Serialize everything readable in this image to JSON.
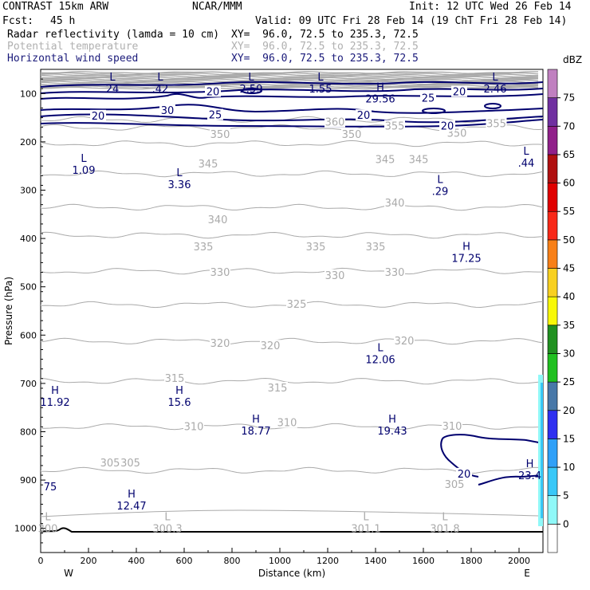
{
  "header": {
    "model": "CONTRAST 15km ARW",
    "org": "NCAR/MMM",
    "init": "Init: 12 UTC Wed 26 Feb 14",
    "fcst_label": "Fcst:",
    "fcst_value": "45 h",
    "valid": "Valid: 09 UTC Fri 28 Feb 14 (19 ChT Fri 28 Feb 14)"
  },
  "fields": [
    {
      "name": "Radar reflectivity (lamda = 10 cm)",
      "xy": "XY=  96.0, 72.5 to 235.3, 72.5",
      "color": "#000000"
    },
    {
      "name": "Potential temperature",
      "xy": "XY=  96.0, 72.5 to 235.3, 72.5",
      "color": "#b0b0b0"
    },
    {
      "name": "Horizontal wind speed",
      "xy": "XY=  96.0, 72.5 to 235.3, 72.5",
      "color": "#1a1a7a"
    }
  ],
  "colors": {
    "theta": "#aaaaaa",
    "wind": "#00006e",
    "terrain": "#000000"
  },
  "chart_data": {
    "type": "cross-section",
    "xlabel": "Distance (km)",
    "ylabel": "Pressure (hPa)",
    "xlim": [
      0,
      2100
    ],
    "ylim": [
      1050,
      50
    ],
    "xticks": [
      0,
      200,
      400,
      600,
      800,
      1000,
      1200,
      1400,
      1600,
      1800,
      2000
    ],
    "yticks": [
      100,
      200,
      300,
      400,
      500,
      600,
      700,
      800,
      900,
      1000
    ],
    "west_label": "W",
    "east_label": "E",
    "colorbar": {
      "title": "dBZ",
      "levels": [
        "0",
        "5",
        "10",
        "15",
        "20",
        "25",
        "30",
        "35",
        "40",
        "45",
        "50",
        "55",
        "60",
        "65",
        "70",
        "75"
      ],
      "colors": [
        "#ffffff",
        "#8ff8f8",
        "#38c8f8",
        "#2fa0f8",
        "#2f30f0",
        "#4878a8",
        "#20c020",
        "#209020",
        "#f8f808",
        "#f8d020",
        "#f88018",
        "#f82818",
        "#e00000",
        "#b01010",
        "#90208a",
        "#7030a0",
        "#c080c0"
      ]
    },
    "theta_labels": [
      {
        "text": "350",
        "x": 750,
        "p": 185
      },
      {
        "text": "350",
        "x": 1300,
        "p": 185
      },
      {
        "text": "350",
        "x": 1740,
        "p": 183
      },
      {
        "text": "355",
        "x": 1480,
        "p": 168
      },
      {
        "text": "355",
        "x": 1905,
        "p": 163
      },
      {
        "text": "360",
        "x": 1230,
        "p": 160
      },
      {
        "text": "345",
        "x": 700,
        "p": 246
      },
      {
        "text": "345",
        "x": 1440,
        "p": 237
      },
      {
        "text": "345",
        "x": 1580,
        "p": 237
      },
      {
        "text": "340",
        "x": 740,
        "p": 362
      },
      {
        "text": "340",
        "x": 1480,
        "p": 327
      },
      {
        "text": "335",
        "x": 680,
        "p": 418
      },
      {
        "text": "335",
        "x": 1150,
        "p": 418
      },
      {
        "text": "335",
        "x": 1400,
        "p": 418
      },
      {
        "text": "330",
        "x": 750,
        "p": 471
      },
      {
        "text": "330",
        "x": 1230,
        "p": 477
      },
      {
        "text": "330",
        "x": 1480,
        "p": 471
      },
      {
        "text": "325",
        "x": 1070,
        "p": 537
      },
      {
        "text": "320",
        "x": 750,
        "p": 618
      },
      {
        "text": "320",
        "x": 960,
        "p": 623
      },
      {
        "text": "320",
        "x": 1520,
        "p": 613
      },
      {
        "text": "315",
        "x": 560,
        "p": 690
      },
      {
        "text": "315",
        "x": 990,
        "p": 710
      },
      {
        "text": "310",
        "x": 640,
        "p": 790
      },
      {
        "text": "310",
        "x": 1030,
        "p": 782
      },
      {
        "text": "310",
        "x": 1720,
        "p": 789
      },
      {
        "text": "305",
        "x": 290,
        "p": 865
      },
      {
        "text": "305",
        "x": 375,
        "p": 865
      },
      {
        "text": "305",
        "x": 1730,
        "p": 910
      }
    ],
    "wind_labels": [
      {
        "text": "20",
        "x": 720,
        "p": 97
      },
      {
        "text": "20",
        "x": 1750,
        "p": 97
      },
      {
        "text": "25",
        "x": 1620,
        "p": 110
      },
      {
        "text": "30",
        "x": 530,
        "p": 136
      },
      {
        "text": "20",
        "x": 240,
        "p": 147
      },
      {
        "text": "25",
        "x": 730,
        "p": 145
      },
      {
        "text": "20",
        "x": 1350,
        "p": 146
      },
      {
        "text": "20",
        "x": 1700,
        "p": 168
      },
      {
        "text": "20",
        "x": 1770,
        "p": 888
      }
    ],
    "extrema": [
      {
        "type": "L",
        "value": "24",
        "x": 300,
        "p": 80,
        "kind": "wind"
      },
      {
        "type": "L",
        "value": ".42",
        "x": 500,
        "p": 80,
        "kind": "wind"
      },
      {
        "type": "L",
        "value": "2.59",
        "x": 880,
        "p": 80,
        "kind": "wind"
      },
      {
        "type": "L",
        "value": "1.55",
        "x": 1170,
        "p": 80,
        "kind": "wind"
      },
      {
        "type": "L",
        "value": "2.46",
        "x": 1900,
        "p": 80,
        "kind": "wind"
      },
      {
        "type": "H",
        "value": "29.56",
        "x": 1420,
        "p": 100,
        "kind": "wind"
      },
      {
        "type": "L",
        "value": "1.09",
        "x": 180,
        "p": 248,
        "kind": "wind"
      },
      {
        "type": "L",
        "value": "3.36",
        "x": 580,
        "p": 278,
        "kind": "wind"
      },
      {
        "type": "L",
        "value": ".44",
        "x": 2030,
        "p": 233,
        "kind": "wind"
      },
      {
        "type": "L",
        "value": ".29",
        "x": 1670,
        "p": 292,
        "kind": "wind"
      },
      {
        "type": "H",
        "value": "17.25",
        "x": 1780,
        "p": 430,
        "kind": "wind"
      },
      {
        "type": "L",
        "value": "12.06",
        "x": 1420,
        "p": 640,
        "kind": "wind"
      },
      {
        "type": "H",
        "value": "11.92",
        "x": 60,
        "p": 728,
        "kind": "wind"
      },
      {
        "type": "H",
        "value": "15.6",
        "x": 580,
        "p": 728,
        "kind": "wind"
      },
      {
        "type": "H",
        "value": "18.77",
        "x": 900,
        "p": 788,
        "kind": "wind"
      },
      {
        "type": "H",
        "value": "19.43",
        "x": 1470,
        "p": 788,
        "kind": "wind"
      },
      {
        "type": "H",
        "value": "23.4",
        "x": 2045,
        "p": 880,
        "kind": "wind"
      },
      {
        "type": "",
        "value": "75",
        "x": 40,
        "p": 903,
        "kind": "wind"
      },
      {
        "type": "H",
        "value": "12.47",
        "x": 380,
        "p": 943,
        "kind": "wind"
      },
      {
        "type": "L",
        "value": "300",
        "x": 30,
        "p": 990,
        "kind": "theta"
      },
      {
        "type": "L",
        "value": "300.3",
        "x": 530,
        "p": 990,
        "kind": "theta"
      },
      {
        "type": "L",
        "value": "301.1",
        "x": 1360,
        "p": 990,
        "kind": "theta"
      },
      {
        "type": "L",
        "value": "301.8",
        "x": 1690,
        "p": 990,
        "kind": "theta"
      }
    ]
  }
}
